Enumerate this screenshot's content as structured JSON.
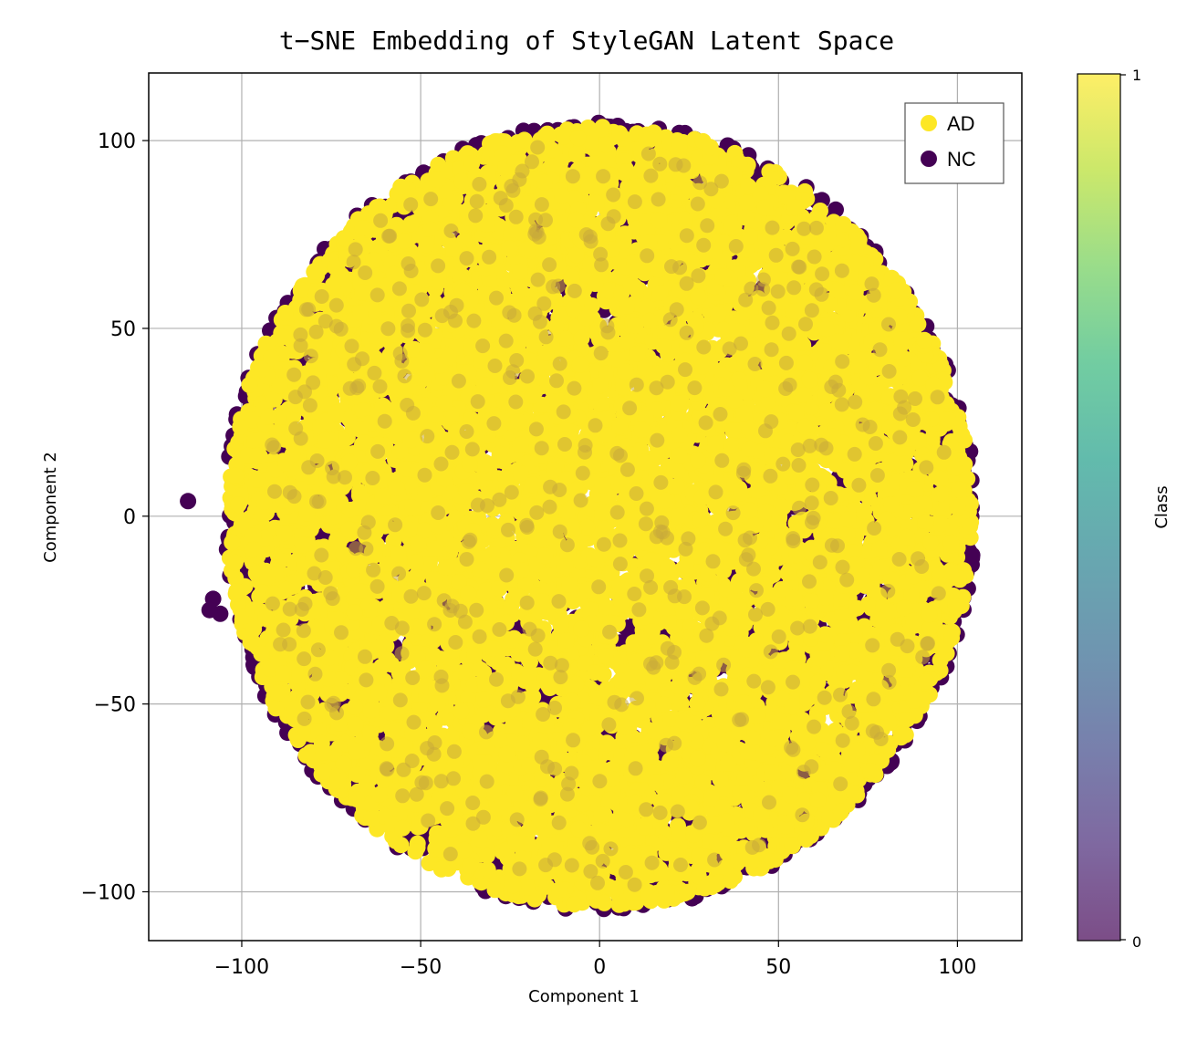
{
  "chart_data": {
    "type": "scatter",
    "title": "t−SNE Embedding of StyleGAN Latent Space",
    "xlabel": "Component 1",
    "ylabel": "Component 2",
    "xlim": [
      -126,
      118
    ],
    "ylim": [
      -113,
      118
    ],
    "xticks": [
      -100,
      -50,
      0,
      50,
      100
    ],
    "yticks": [
      -100,
      -50,
      0,
      50,
      100
    ],
    "xtick_labels": [
      "−100",
      "−50",
      "0",
      "50",
      "100"
    ],
    "ytick_labels": [
      "−100",
      "−50",
      "0",
      "50",
      "100"
    ],
    "grid": true,
    "legend_position": "top-right",
    "series": [
      {
        "name": "NC",
        "class": 0,
        "color": "#440154",
        "approx_count": 4200,
        "distribution": "disk centered near (0,0), radius about 105; most visible near the outer ring, especially upper-right",
        "outliers": [
          [
            -115,
            4
          ],
          [
            -108,
            -22
          ],
          [
            -106,
            -26
          ],
          [
            -109,
            -25
          ]
        ]
      },
      {
        "name": "AD",
        "class": 1,
        "color": "#fde725",
        "approx_count": 9000,
        "distribution": "disk centered near (0,0), radius about 105; densely covering the interior"
      }
    ],
    "colorbar": {
      "label": "Class",
      "ticks": [
        0,
        1
      ],
      "tick_labels": [
        "0",
        "1"
      ],
      "cmap": "viridis",
      "alpha": 0.7
    }
  }
}
